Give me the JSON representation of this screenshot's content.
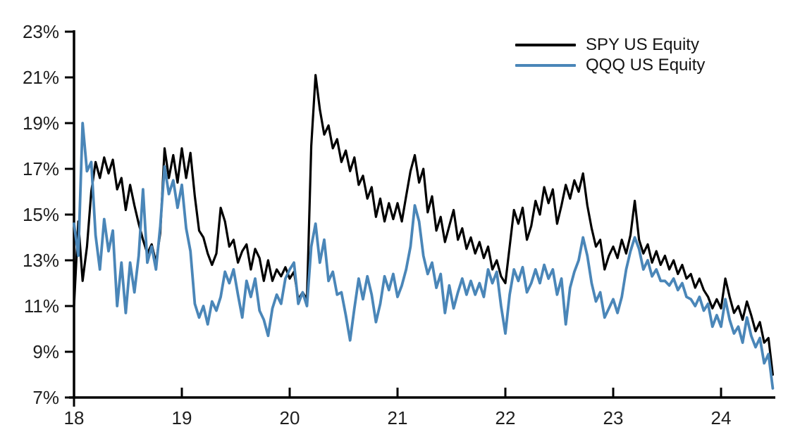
{
  "chart_data": {
    "type": "line",
    "xlabel": "",
    "ylabel": "",
    "ylim": [
      7,
      23
    ],
    "x_range": [
      18,
      24.48
    ],
    "grid": false,
    "legend_position": "top-right",
    "axis_color": "#000000",
    "label_color": "#1f1f1f",
    "background_color": "#ffffff",
    "y_ticks": [
      23,
      21,
      19,
      17,
      15,
      13,
      11,
      9,
      7
    ],
    "y_tick_labels": [
      "23%",
      "21%",
      "19%",
      "17%",
      "15%",
      "13%",
      "11%",
      "9%",
      "7%"
    ],
    "x_ticks": [
      18,
      19,
      20,
      21,
      22,
      23,
      24
    ],
    "x_tick_labels": [
      "18",
      "19",
      "20",
      "21",
      "22",
      "23",
      "24"
    ],
    "x": [
      18,
      18.04,
      18.08,
      18.12,
      18.16,
      18.2,
      18.24,
      18.28,
      18.32,
      18.36,
      18.4,
      18.44,
      18.48,
      18.52,
      18.56,
      18.6,
      18.64,
      18.68,
      18.72,
      18.76,
      18.8,
      18.84,
      18.88,
      18.92,
      18.96,
      19,
      19.04,
      19.08,
      19.12,
      19.16,
      19.2,
      19.24,
      19.28,
      19.32,
      19.36,
      19.4,
      19.44,
      19.48,
      19.52,
      19.56,
      19.6,
      19.64,
      19.68,
      19.72,
      19.76,
      19.8,
      19.84,
      19.88,
      19.92,
      19.96,
      20,
      20.04,
      20.08,
      20.12,
      20.16,
      20.2,
      20.24,
      20.28,
      20.32,
      20.36,
      20.4,
      20.44,
      20.48,
      20.52,
      20.56,
      20.6,
      20.64,
      20.68,
      20.72,
      20.76,
      20.8,
      20.84,
      20.88,
      20.92,
      20.96,
      21,
      21.04,
      21.08,
      21.12,
      21.16,
      21.2,
      21.24,
      21.28,
      21.32,
      21.36,
      21.4,
      21.44,
      21.48,
      21.52,
      21.56,
      21.6,
      21.64,
      21.68,
      21.72,
      21.76,
      21.8,
      21.84,
      21.88,
      21.92,
      21.96,
      22,
      22.04,
      22.08,
      22.12,
      22.16,
      22.2,
      22.24,
      22.28,
      22.32,
      22.36,
      22.4,
      22.44,
      22.48,
      22.52,
      22.56,
      22.6,
      22.64,
      22.68,
      22.72,
      22.76,
      22.8,
      22.84,
      22.88,
      22.92,
      22.96,
      23,
      23.04,
      23.08,
      23.12,
      23.16,
      23.2,
      23.24,
      23.28,
      23.32,
      23.36,
      23.4,
      23.44,
      23.48,
      23.52,
      23.56,
      23.6,
      23.64,
      23.68,
      23.72,
      23.76,
      23.8,
      23.84,
      23.88,
      23.92,
      23.96,
      24,
      24.04,
      24.08,
      24.12,
      24.16,
      24.2,
      24.24,
      24.28,
      24.32,
      24.36,
      24.4,
      24.44,
      24.48
    ],
    "series": [
      {
        "name": "SPY US Equity",
        "slug": "spy-line",
        "color": "#000000",
        "values": [
          11,
          14.7,
          12.1,
          13.6,
          16,
          17.3,
          16.6,
          17.5,
          16.8,
          17.4,
          16.1,
          16.6,
          15.2,
          16.3,
          15.4,
          14.6,
          13.9,
          13.3,
          13.7,
          12.9,
          14.2,
          17.9,
          16.6,
          17.6,
          16.4,
          17.9,
          16.6,
          17.7,
          15.8,
          14.3,
          14,
          13.3,
          12.8,
          13.3,
          15.3,
          14.7,
          13.6,
          13.9,
          12.9,
          13.4,
          13.7,
          12.6,
          13.5,
          13.1,
          12.1,
          13,
          12.1,
          12.6,
          12.3,
          12.7,
          12.2,
          12.5,
          11.3,
          11.6,
          11.3,
          18,
          21.1,
          19.6,
          18.5,
          18.9,
          17.9,
          18.3,
          17.3,
          17.8,
          16.9,
          17.5,
          16.3,
          16.7,
          15.7,
          16.2,
          14.9,
          15.7,
          14.7,
          15.5,
          14.8,
          15.5,
          14.7,
          15.8,
          16.9,
          17.6,
          16.4,
          17,
          15.1,
          15.8,
          14.3,
          14.9,
          13.8,
          14.5,
          15.2,
          13.9,
          14.4,
          13.5,
          14,
          13.3,
          13.8,
          13.1,
          13.6,
          12.6,
          13,
          12.3,
          12,
          13.6,
          15.2,
          14.6,
          15.3,
          13.9,
          14.5,
          15.6,
          15,
          16.2,
          15.5,
          16.1,
          14.6,
          15.4,
          16.3,
          15.7,
          16.5,
          16,
          16.8,
          15.4,
          14.4,
          13.6,
          13.9,
          12.6,
          13.2,
          13.6,
          13.1,
          13.9,
          13.3,
          14.1,
          15.6,
          13.9,
          13.3,
          13.7,
          12.9,
          13.4,
          12.8,
          13.2,
          12.6,
          13,
          12.4,
          12.8,
          12.2,
          12.4,
          11.8,
          12.2,
          11.7,
          11.4,
          10.9,
          11.3,
          10.9,
          12.2,
          11.4,
          10.7,
          11,
          10.4,
          11.2,
          10.6,
          9.9,
          10.3,
          9.4,
          9.6,
          8
        ]
      },
      {
        "name": "QQQ US Equity",
        "slug": "qqq-line",
        "color": "#4a86b8",
        "values": [
          14.6,
          13.2,
          19,
          16.9,
          17.3,
          14.1,
          12.6,
          14.8,
          13.4,
          14.3,
          11,
          12.9,
          10.7,
          12.9,
          11.6,
          13.2,
          16.1,
          12.9,
          13.6,
          12.6,
          14.5,
          17.1,
          15.9,
          16.5,
          15.3,
          16.3,
          14.4,
          13.4,
          11.1,
          10.5,
          11,
          10.2,
          11.2,
          10.8,
          11.4,
          12.5,
          12,
          12.6,
          11.5,
          10.5,
          12.1,
          11.4,
          12.2,
          10.8,
          10.4,
          9.7,
          10.9,
          11.5,
          11.1,
          12.2,
          12.6,
          12.9,
          11.1,
          11.6,
          11,
          13.6,
          14.6,
          12.9,
          13.9,
          12.1,
          12.5,
          11.5,
          11.6,
          10.6,
          9.5,
          10.9,
          12.2,
          11.3,
          12.3,
          11.5,
          10.3,
          11.1,
          12.3,
          11.7,
          12.4,
          11.4,
          11.9,
          12.6,
          13.6,
          15.4,
          14.7,
          13.2,
          12.4,
          12.9,
          11.8,
          12.4,
          10.7,
          11.9,
          10.9,
          11.6,
          12.2,
          11.5,
          12.1,
          11.5,
          12,
          11.4,
          12.6,
          12,
          12.5,
          11,
          9.8,
          11.5,
          12.6,
          12.1,
          12.7,
          11.6,
          12,
          12.6,
          12,
          12.8,
          12.2,
          12.6,
          11.5,
          12.2,
          10.2,
          11.8,
          12.5,
          13,
          14,
          13.2,
          12,
          11.2,
          11.6,
          10.5,
          10.9,
          11.3,
          10.7,
          11.4,
          12.6,
          13.4,
          14,
          13.5,
          12.6,
          13,
          12.3,
          12.6,
          12.1,
          12.1,
          11.9,
          12.2,
          11.7,
          12,
          11.4,
          11.3,
          11,
          11.4,
          10.8,
          11.1,
          10.1,
          10.6,
          10.1,
          11.3,
          10.4,
          9.8,
          10.1,
          9.4,
          10.5,
          9.7,
          9.2,
          9.6,
          8.5,
          8.9,
          7.4
        ]
      }
    ]
  },
  "legend": {
    "items": [
      {
        "label": "SPY US Equity"
      },
      {
        "label": "QQQ US Equity"
      }
    ]
  }
}
